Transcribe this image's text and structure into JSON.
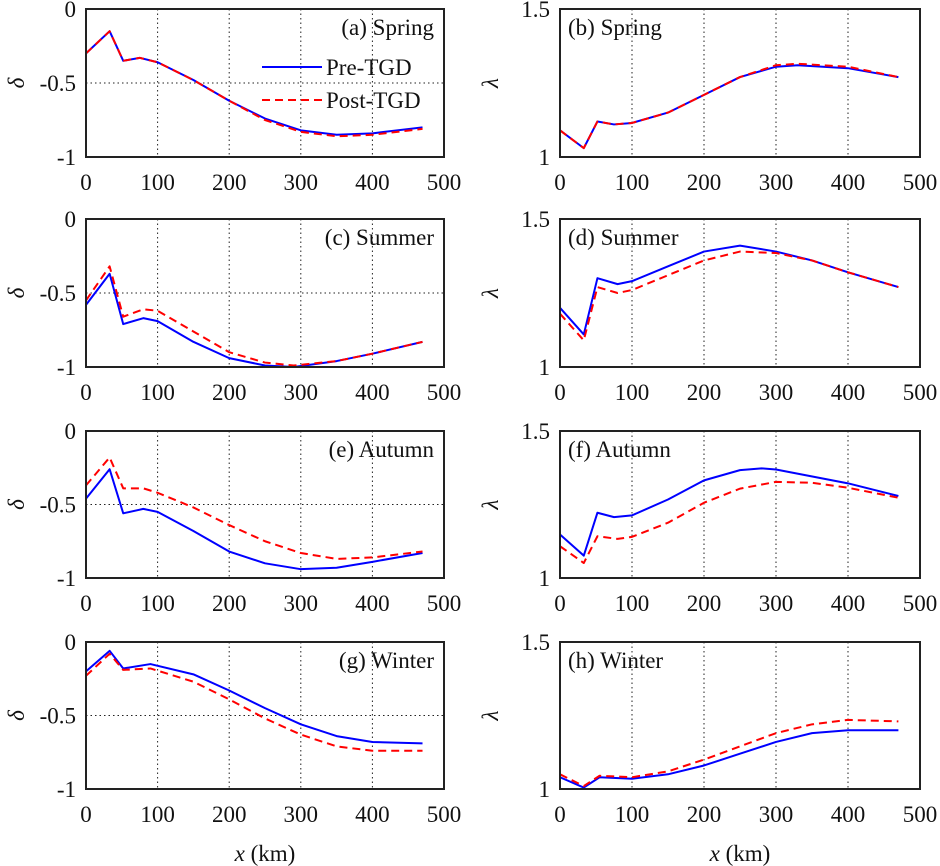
{
  "chart_data": [
    {
      "type": "line",
      "title": "(a) Spring",
      "ylabel": "δ",
      "ylim": [
        -1,
        0
      ],
      "yticks": [
        0,
        -0.5,
        -1
      ],
      "ytick_labels": [
        "0",
        "-0.5",
        "-1"
      ],
      "xlim": [
        0,
        500
      ],
      "xticks": [
        0,
        100,
        200,
        300,
        400,
        500
      ],
      "label_pos": "top-right",
      "legend": true,
      "series": [
        {
          "name": "Pre-TGD",
          "x": [
            0,
            33,
            52,
            75,
            100,
            150,
            200,
            250,
            300,
            350,
            400,
            470
          ],
          "y": [
            -0.3,
            -0.15,
            -0.35,
            -0.33,
            -0.36,
            -0.48,
            -0.62,
            -0.74,
            -0.82,
            -0.85,
            -0.84,
            -0.8
          ]
        },
        {
          "name": "Post-TGD",
          "x": [
            0,
            33,
            52,
            75,
            100,
            150,
            200,
            250,
            300,
            350,
            400,
            470
          ],
          "y": [
            -0.3,
            -0.15,
            -0.35,
            -0.33,
            -0.36,
            -0.48,
            -0.62,
            -0.75,
            -0.83,
            -0.86,
            -0.85,
            -0.81
          ]
        }
      ]
    },
    {
      "type": "line",
      "title": "(b) Spring",
      "ylabel": "λ",
      "ylim": [
        1,
        1.5
      ],
      "yticks": [
        1.5,
        1
      ],
      "ytick_labels": [
        "1.5",
        "1"
      ],
      "xlim": [
        0,
        500
      ],
      "xticks": [
        0,
        100,
        200,
        300,
        400,
        500
      ],
      "label_pos": "top-left",
      "series": [
        {
          "name": "Pre-TGD",
          "x": [
            0,
            33,
            52,
            75,
            100,
            150,
            200,
            250,
            300,
            330,
            400,
            470
          ],
          "y": [
            1.09,
            1.03,
            1.12,
            1.11,
            1.115,
            1.15,
            1.21,
            1.27,
            1.305,
            1.31,
            1.3,
            1.27
          ]
        },
        {
          "name": "Post-TGD",
          "x": [
            0,
            33,
            52,
            75,
            100,
            150,
            200,
            250,
            300,
            330,
            400,
            470
          ],
          "y": [
            1.09,
            1.03,
            1.12,
            1.11,
            1.115,
            1.15,
            1.21,
            1.27,
            1.31,
            1.315,
            1.305,
            1.27
          ]
        }
      ]
    },
    {
      "type": "line",
      "title": "(c) Summer",
      "ylabel": "δ",
      "ylim": [
        -1,
        0
      ],
      "yticks": [
        0,
        -0.5,
        -1
      ],
      "ytick_labels": [
        "0",
        "-0.5",
        "-1"
      ],
      "xlim": [
        0,
        500
      ],
      "xticks": [
        0,
        100,
        200,
        300,
        400,
        500
      ],
      "label_pos": "top-right",
      "series": [
        {
          "name": "Pre-TGD",
          "x": [
            0,
            33,
            52,
            80,
            100,
            150,
            200,
            250,
            290,
            350,
            400,
            470
          ],
          "y": [
            -0.58,
            -0.37,
            -0.71,
            -0.67,
            -0.69,
            -0.83,
            -0.94,
            -0.99,
            -1.0,
            -0.96,
            -0.91,
            -0.83
          ]
        },
        {
          "name": "Post-TGD",
          "x": [
            0,
            33,
            52,
            80,
            100,
            150,
            200,
            250,
            290,
            350,
            400,
            470
          ],
          "y": [
            -0.55,
            -0.32,
            -0.66,
            -0.61,
            -0.62,
            -0.76,
            -0.9,
            -0.97,
            -0.99,
            -0.96,
            -0.91,
            -0.83
          ]
        }
      ]
    },
    {
      "type": "line",
      "title": "(d) Summer",
      "ylabel": "λ",
      "ylim": [
        1,
        1.5
      ],
      "yticks": [
        1.5,
        1
      ],
      "ytick_labels": [
        "1.5",
        "1"
      ],
      "xlim": [
        0,
        500
      ],
      "xticks": [
        0,
        100,
        200,
        300,
        400,
        500
      ],
      "label_pos": "top-left",
      "series": [
        {
          "name": "Pre-TGD",
          "x": [
            0,
            33,
            52,
            80,
            100,
            150,
            200,
            250,
            300,
            350,
            400,
            470
          ],
          "y": [
            1.2,
            1.11,
            1.3,
            1.28,
            1.29,
            1.34,
            1.39,
            1.41,
            1.39,
            1.36,
            1.32,
            1.27
          ]
        },
        {
          "name": "Post-TGD",
          "x": [
            0,
            33,
            52,
            80,
            100,
            150,
            200,
            250,
            300,
            350,
            400,
            470
          ],
          "y": [
            1.18,
            1.09,
            1.27,
            1.25,
            1.26,
            1.31,
            1.36,
            1.39,
            1.385,
            1.36,
            1.32,
            1.27
          ]
        }
      ]
    },
    {
      "type": "line",
      "title": "(e) Autumn",
      "ylabel": "δ",
      "ylim": [
        -1,
        0
      ],
      "yticks": [
        0,
        -0.5,
        -1
      ],
      "ytick_labels": [
        "0",
        "-0.5",
        "-1"
      ],
      "xlim": [
        0,
        500
      ],
      "xticks": [
        0,
        100,
        200,
        300,
        400,
        500
      ],
      "label_pos": "top-right",
      "series": [
        {
          "name": "Pre-TGD",
          "x": [
            0,
            33,
            52,
            80,
            100,
            150,
            200,
            250,
            300,
            350,
            400,
            470
          ],
          "y": [
            -0.46,
            -0.26,
            -0.56,
            -0.53,
            -0.55,
            -0.68,
            -0.82,
            -0.9,
            -0.94,
            -0.93,
            -0.89,
            -0.83
          ]
        },
        {
          "name": "Post-TGD",
          "x": [
            0,
            33,
            52,
            80,
            100,
            150,
            200,
            250,
            300,
            350,
            400,
            470
          ],
          "y": [
            -0.37,
            -0.18,
            -0.39,
            -0.39,
            -0.42,
            -0.52,
            -0.64,
            -0.75,
            -0.83,
            -0.87,
            -0.86,
            -0.82
          ]
        }
      ]
    },
    {
      "type": "line",
      "title": "(f) Autumn",
      "ylabel": "λ",
      "ylim": [
        1,
        1.5
      ],
      "yticks": [
        1.5,
        1
      ],
      "ytick_labels": [
        "1.5",
        "1"
      ],
      "xlim": [
        0,
        500
      ],
      "xticks": [
        0,
        100,
        200,
        300,
        400,
        500
      ],
      "label_pos": "top-left",
      "series": [
        {
          "name": "Pre-TGD",
          "x": [
            0,
            33,
            52,
            75,
            100,
            150,
            200,
            250,
            280,
            300,
            400,
            470
          ],
          "y": [
            1.148,
            1.076,
            1.222,
            1.207,
            1.213,
            1.267,
            1.332,
            1.367,
            1.373,
            1.369,
            1.322,
            1.279
          ]
        },
        {
          "name": "Post-TGD",
          "x": [
            0,
            33,
            52,
            80,
            100,
            150,
            200,
            250,
            300,
            350,
            400,
            470
          ],
          "y": [
            1.108,
            1.051,
            1.142,
            1.133,
            1.14,
            1.188,
            1.256,
            1.304,
            1.327,
            1.324,
            1.307,
            1.273
          ]
        }
      ]
    },
    {
      "type": "line",
      "title": "(g) Winter",
      "ylabel": "δ",
      "ylim": [
        -1,
        0
      ],
      "yticks": [
        0,
        -0.5,
        -1
      ],
      "ytick_labels": [
        "0",
        "-0.5",
        "-1"
      ],
      "xlim": [
        0,
        500
      ],
      "xticks": [
        0,
        100,
        200,
        300,
        400,
        500
      ],
      "label_pos": "top-right",
      "xlabel": "x (km)",
      "series": [
        {
          "name": "Pre-TGD",
          "x": [
            0,
            33,
            52,
            90,
            150,
            200,
            250,
            300,
            350,
            400,
            470
          ],
          "y": [
            -0.2,
            -0.06,
            -0.18,
            -0.15,
            -0.22,
            -0.33,
            -0.45,
            -0.56,
            -0.64,
            -0.68,
            -0.69
          ]
        },
        {
          "name": "Post-TGD",
          "x": [
            0,
            33,
            52,
            90,
            150,
            200,
            250,
            300,
            350,
            400,
            470
          ],
          "y": [
            -0.23,
            -0.08,
            -0.19,
            -0.18,
            -0.27,
            -0.39,
            -0.52,
            -0.63,
            -0.71,
            -0.74,
            -0.74
          ]
        }
      ]
    },
    {
      "type": "line",
      "title": "(h) Winter",
      "ylabel": "λ",
      "ylim": [
        1,
        1.5
      ],
      "yticks": [
        1.5,
        1
      ],
      "ytick_labels": [
        "1.5",
        "1"
      ],
      "xlim": [
        0,
        500
      ],
      "xticks": [
        0,
        100,
        200,
        300,
        400,
        500
      ],
      "label_pos": "top-left",
      "xlabel": "x (km)",
      "series": [
        {
          "name": "Pre-TGD",
          "x": [
            0,
            33,
            55,
            100,
            150,
            200,
            250,
            300,
            350,
            400,
            470
          ],
          "y": [
            1.04,
            1.005,
            1.04,
            1.035,
            1.05,
            1.08,
            1.12,
            1.16,
            1.19,
            1.2,
            1.2
          ]
        },
        {
          "name": "Post-TGD",
          "x": [
            0,
            33,
            55,
            100,
            150,
            200,
            250,
            300,
            350,
            400,
            470
          ],
          "y": [
            1.05,
            1.01,
            1.045,
            1.04,
            1.06,
            1.1,
            1.145,
            1.19,
            1.22,
            1.235,
            1.23
          ]
        }
      ]
    }
  ],
  "colors": {
    "Pre-TGD": "#0000ff",
    "Post-TGD": "#ff0000"
  }
}
